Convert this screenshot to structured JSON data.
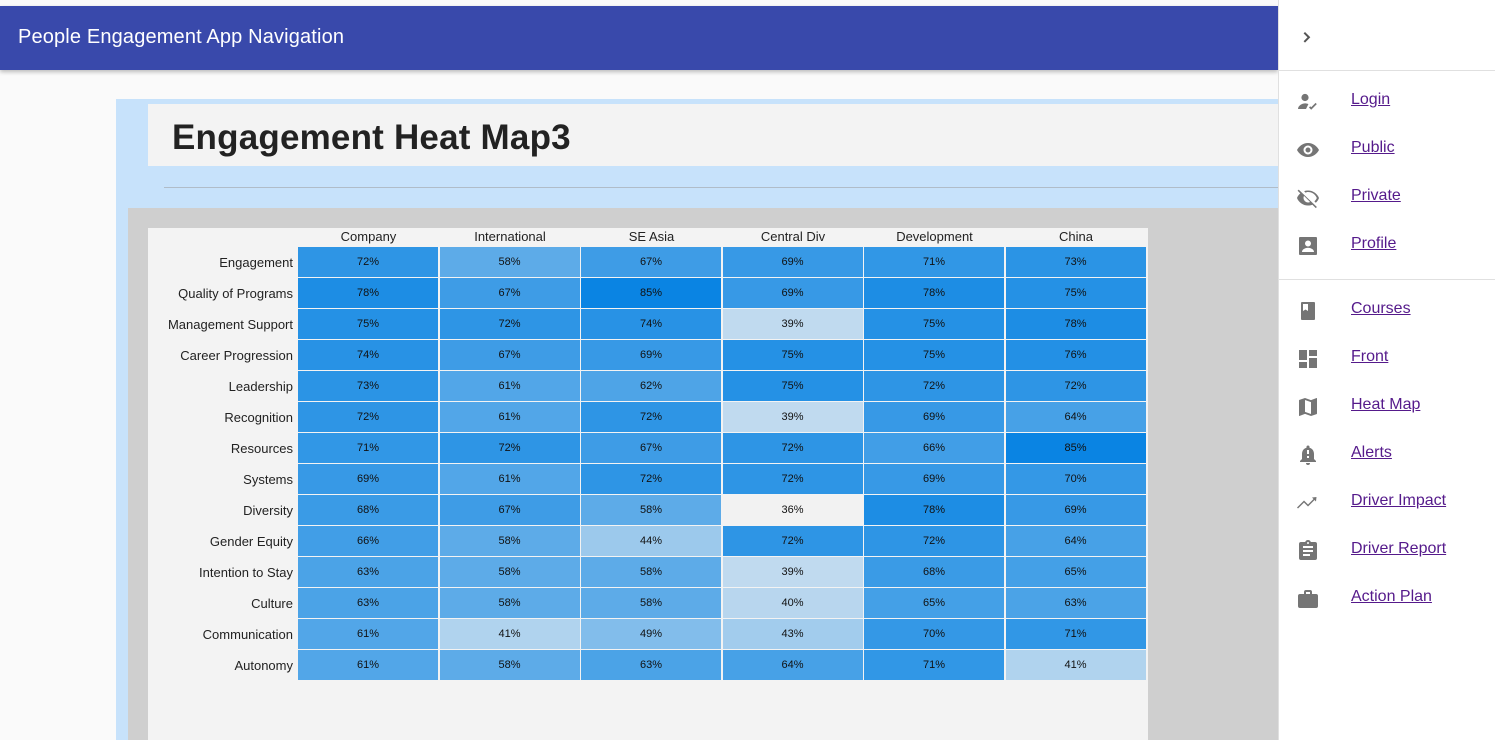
{
  "appbar": {
    "title": "People Engagement App Navigation"
  },
  "page": {
    "title": "Engagement Heat Map3"
  },
  "drawer": {
    "collapse_icon": "chevron-right-icon",
    "group1": [
      {
        "label": "Login",
        "icon": "how-to-reg-icon"
      },
      {
        "label": "Public",
        "icon": "visibility-icon"
      },
      {
        "label": "Private",
        "icon": "visibility-off-icon"
      },
      {
        "label": "Profile",
        "icon": "account-box-icon"
      }
    ],
    "group2": [
      {
        "label": "Courses",
        "icon": "book-icon"
      },
      {
        "label": "Front",
        "icon": "dashboard-icon"
      },
      {
        "label": "Heat Map",
        "icon": "map-icon"
      },
      {
        "label": "Alerts",
        "icon": "notification-important-icon"
      },
      {
        "label": "Driver Impact",
        "icon": "trending-up-icon"
      },
      {
        "label": "Driver Report",
        "icon": "assignment-icon"
      },
      {
        "label": "Action Plan",
        "icon": "work-icon"
      }
    ]
  },
  "chart_data": {
    "type": "heatmap",
    "columns": [
      "Company",
      "International",
      "SE Asia",
      "Central Div",
      "Development",
      "China"
    ],
    "rows": [
      "Engagement",
      "Quality of Programs",
      "Management Support",
      "Career Progression",
      "Leadership",
      "Recognition",
      "Resources",
      "Systems",
      "Diversity",
      "Gender Equity",
      "Intention to Stay",
      "Culture",
      "Communication",
      "Autonomy"
    ],
    "values": [
      [
        72,
        58,
        67,
        69,
        71,
        73
      ],
      [
        78,
        67,
        85,
        69,
        78,
        75
      ],
      [
        75,
        72,
        74,
        39,
        75,
        78
      ],
      [
        74,
        67,
        69,
        75,
        75,
        76
      ],
      [
        73,
        61,
        62,
        75,
        72,
        72
      ],
      [
        72,
        61,
        72,
        39,
        69,
        64
      ],
      [
        71,
        72,
        67,
        72,
        66,
        85
      ],
      [
        69,
        61,
        72,
        72,
        69,
        70
      ],
      [
        68,
        67,
        58,
        36,
        78,
        69
      ],
      [
        66,
        58,
        44,
        72,
        72,
        64
      ],
      [
        63,
        58,
        58,
        39,
        68,
        65
      ],
      [
        63,
        58,
        58,
        40,
        65,
        63
      ],
      [
        61,
        41,
        49,
        43,
        70,
        71
      ],
      [
        61,
        58,
        63,
        64,
        71,
        41
      ]
    ],
    "value_suffix": "%",
    "color_low": "#f2f2f2",
    "color_high": "#0a84e3"
  }
}
